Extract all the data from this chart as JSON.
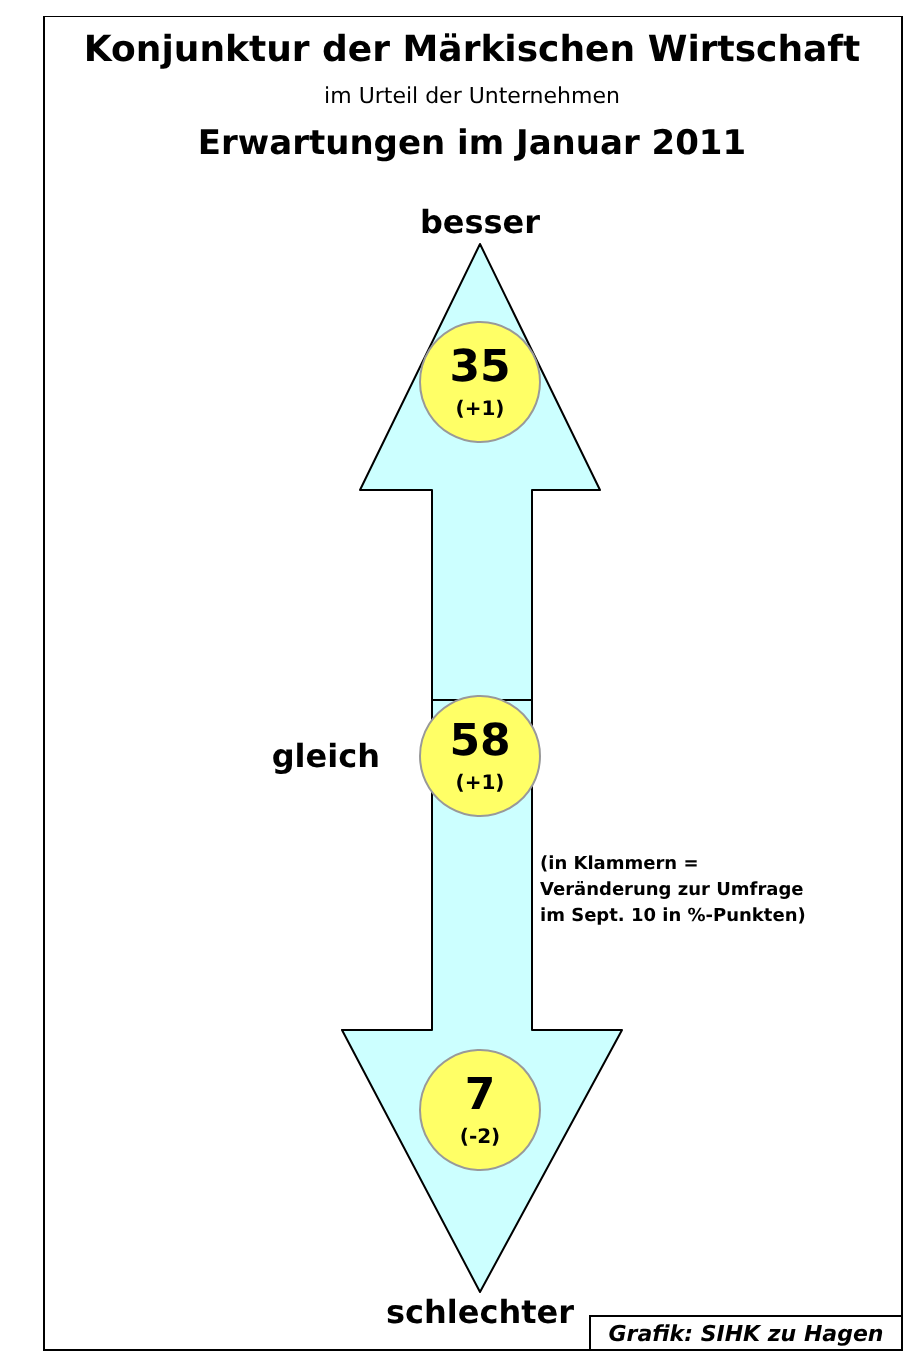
{
  "chart_data": {
    "type": "other",
    "title": "Konjunktur der Märkischen Wirtschaft",
    "subtitle": "im Urteil der Unternehmen",
    "categories": [
      "besser",
      "gleich",
      "schlechter"
    ],
    "values": [
      35,
      58,
      7
    ],
    "data_labels": true,
    "colors": [
      "#ffff66",
      "#ffff66",
      "#ffff66"
    ],
    "annotations": [
      "Erwartungen im Januar 2011",
      "(in Klammern = Veränderung zur Umfrage im Sept. 10 in %-Punkten)",
      "Grafik: SIHK zu Hagen",
      {
        "text": "(+1)",
        "x": "besser"
      },
      {
        "text": "(+1)",
        "x": "gleich"
      },
      {
        "text": "(-2)",
        "x": "schlechter"
      }
    ]
  }
}
